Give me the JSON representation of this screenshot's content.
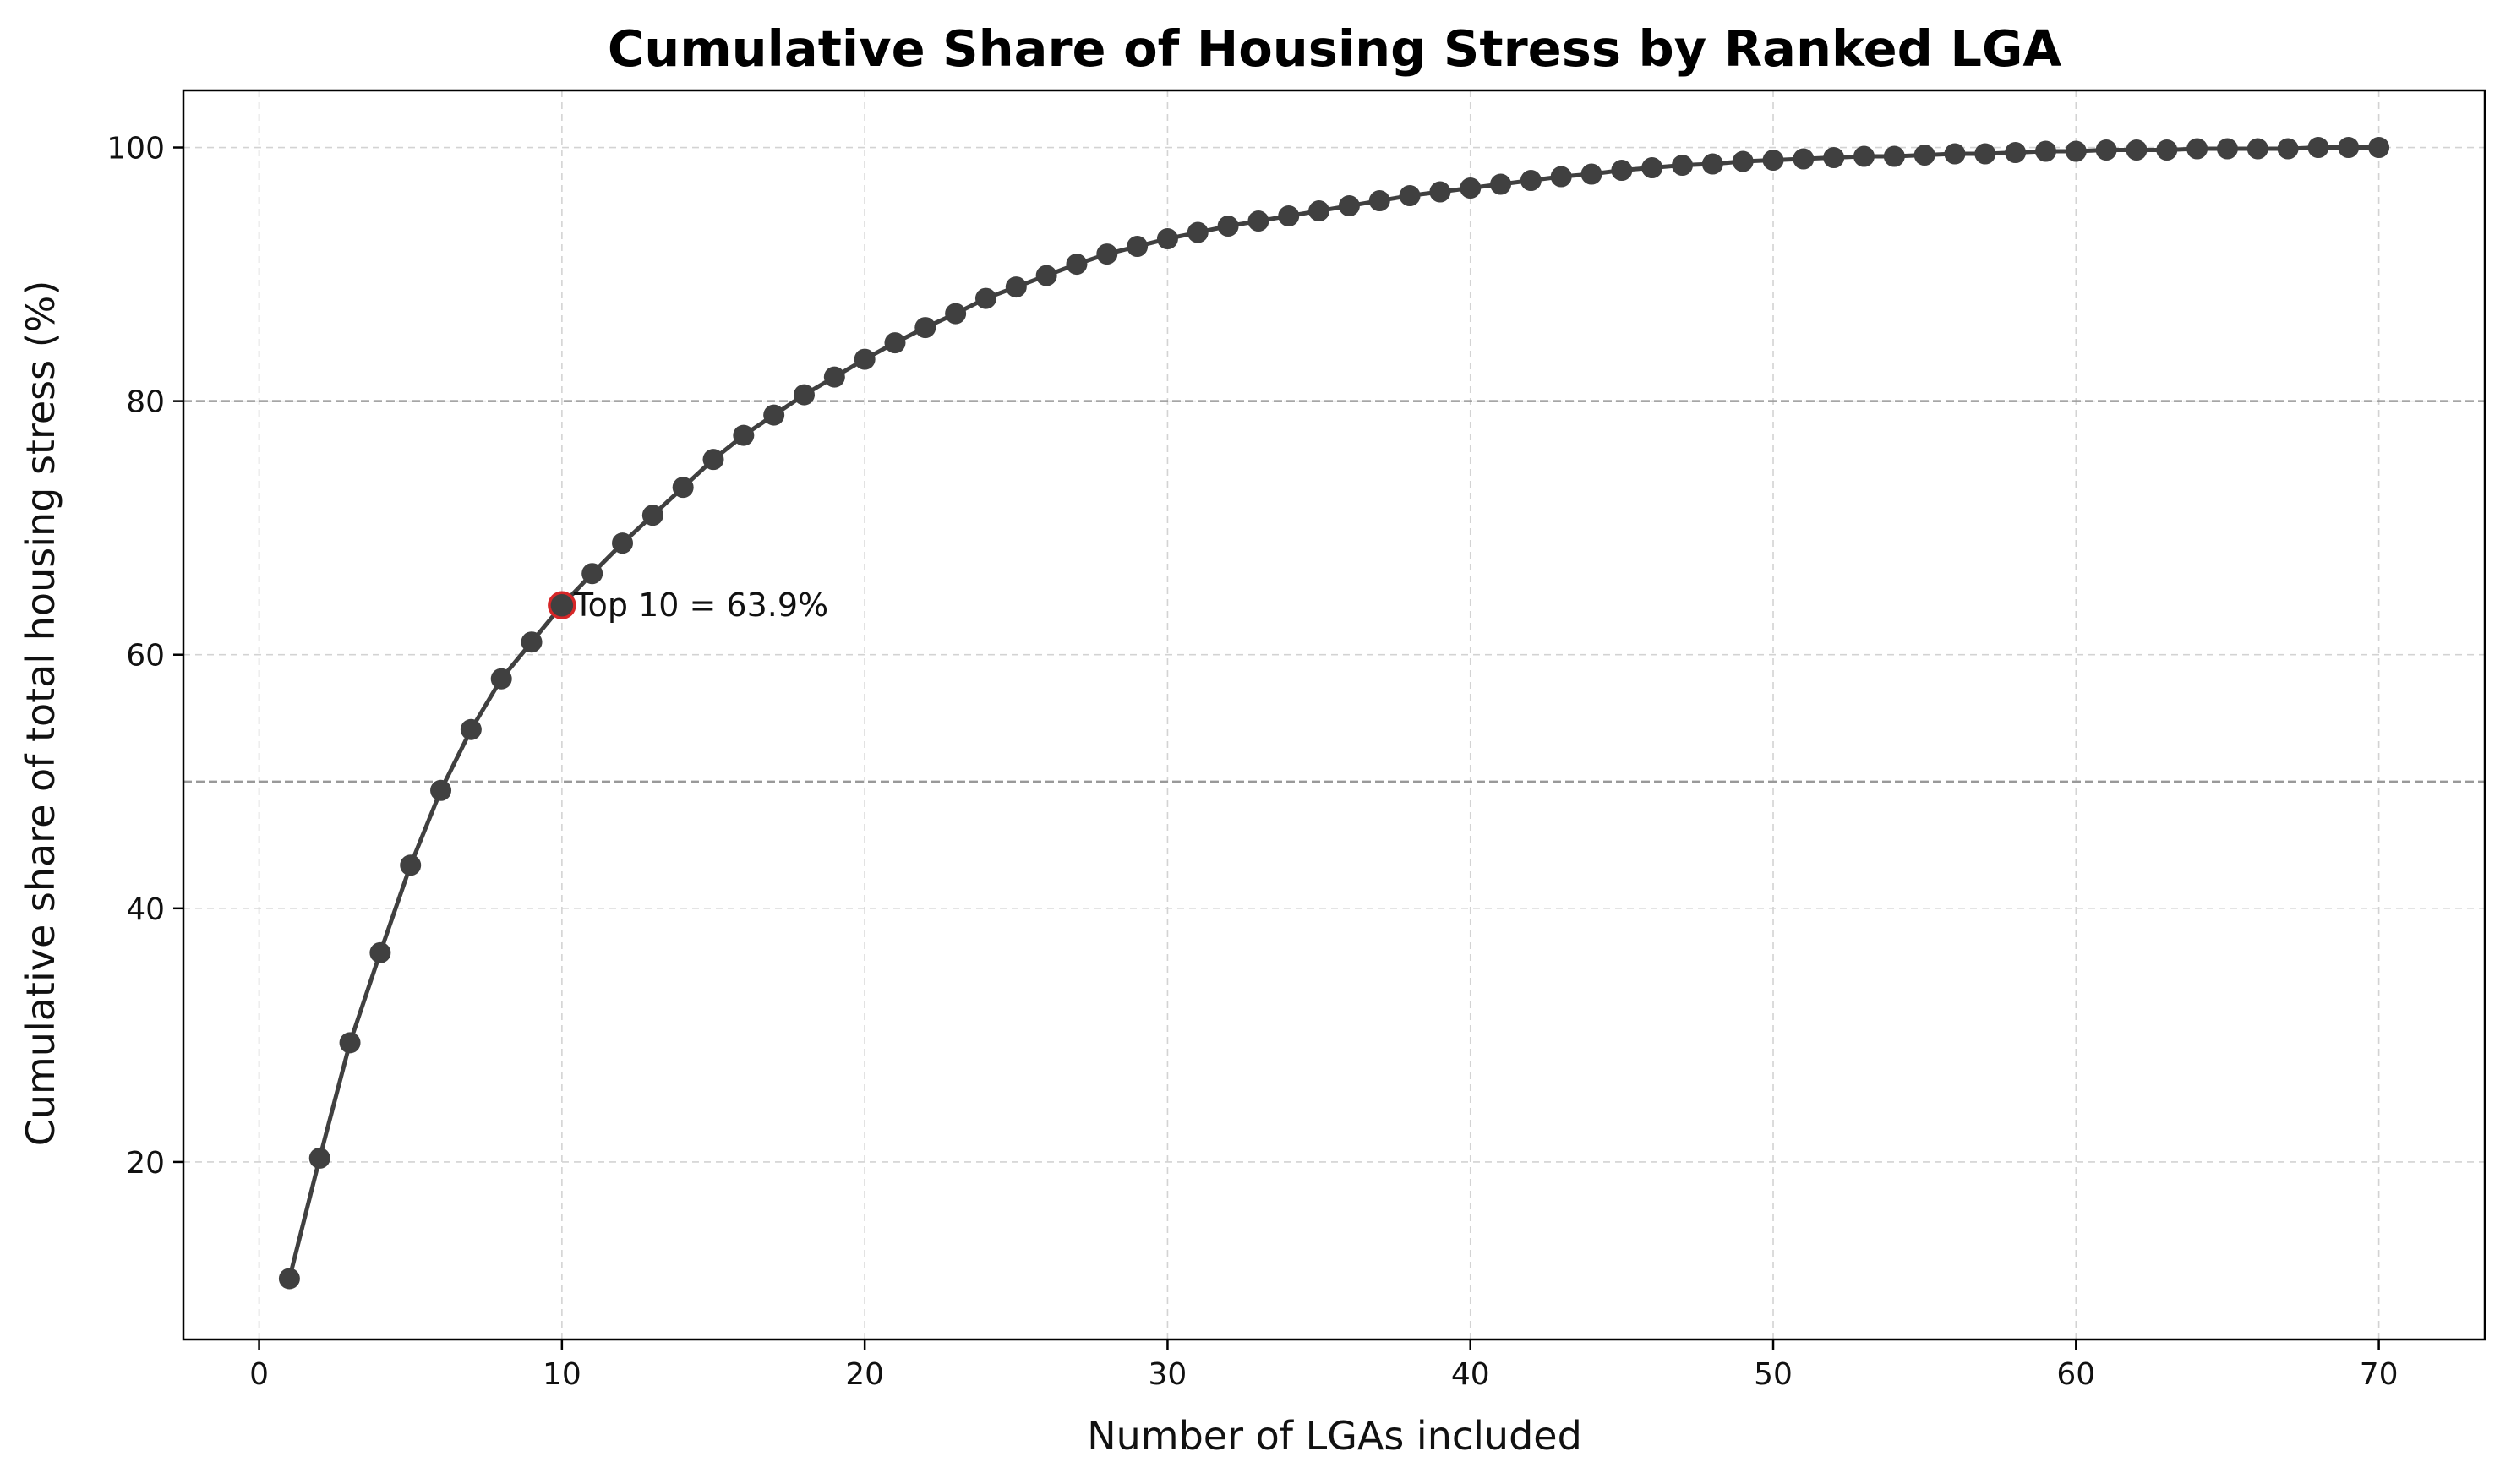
{
  "chart_data": {
    "type": "line",
    "title": "Cumulative Share of Housing Stress by Ranked LGA",
    "xlabel": "Number of LGAs included",
    "ylabel": "Cumulative share of total housing stress (%)",
    "xlim": [
      -2.5,
      73.5
    ],
    "ylim": [
      6.0,
      104.5
    ],
    "xticks": [
      0,
      10,
      20,
      30,
      40,
      50,
      60,
      70
    ],
    "yticks": [
      20,
      40,
      60,
      80,
      100
    ],
    "grid": true,
    "reference_lines": [
      50,
      80
    ],
    "series": [
      {
        "x": [
          1,
          2,
          3,
          4,
          5,
          6,
          7,
          8,
          9,
          10,
          11,
          12,
          13,
          14,
          15,
          16,
          17,
          18,
          19,
          20,
          21,
          22,
          23,
          24,
          25,
          26,
          27,
          28,
          29,
          30,
          31,
          32,
          33,
          34,
          35,
          36,
          37,
          38,
          39,
          40,
          41,
          42,
          43,
          44,
          45,
          46,
          47,
          48,
          49,
          50,
          51,
          52,
          53,
          54,
          55,
          56,
          57,
          58,
          59,
          60,
          61,
          62,
          63,
          64,
          65,
          66,
          67,
          68,
          69,
          70
        ],
        "y": [
          10.8,
          20.3,
          29.4,
          36.5,
          43.4,
          49.3,
          54.1,
          58.1,
          61.0,
          63.9,
          66.4,
          68.8,
          71.0,
          73.2,
          75.4,
          77.3,
          78.9,
          80.5,
          81.9,
          83.3,
          84.6,
          85.8,
          86.9,
          88.1,
          89.0,
          89.9,
          90.8,
          91.6,
          92.2,
          92.8,
          93.3,
          93.8,
          94.2,
          94.6,
          95.0,
          95.4,
          95.8,
          96.2,
          96.5,
          96.8,
          97.1,
          97.4,
          97.7,
          97.9,
          98.2,
          98.4,
          98.6,
          98.7,
          98.9,
          99.0,
          99.1,
          99.2,
          99.3,
          99.3,
          99.4,
          99.5,
          99.5,
          99.6,
          99.7,
          99.7,
          99.8,
          99.8,
          99.8,
          99.9,
          99.9,
          99.9,
          99.9,
          100.0,
          100.0,
          100.0
        ]
      }
    ],
    "highlight": {
      "x": 10,
      "y": 63.9,
      "label": "Top 10 = 63.9%"
    },
    "colors": {
      "line": "#404040",
      "marker": "#404040",
      "highlight_edge": "#d62728",
      "grid": "#d3d3d3",
      "reference": "#999999"
    }
  }
}
